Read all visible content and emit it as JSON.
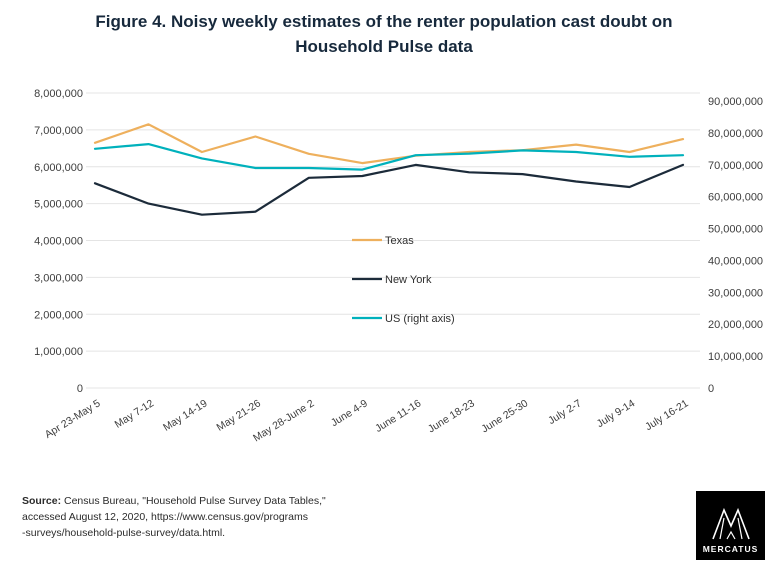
{
  "page": {
    "title": "Figure 4. Noisy weekly estimates of the renter population cast doubt on Household Pulse data"
  },
  "chart_data": {
    "type": "line",
    "title": "Figure 4. Noisy weekly estimates of the renter population cast doubt on Household Pulse data",
    "grid": true,
    "legend_position": "center",
    "categories": [
      "Apr 23-May 5",
      "May 7-12",
      "May 14-19",
      "May 21-26",
      "May 28-June 2",
      "June 4-9",
      "June 11-16",
      "June 18-23",
      "June 25-30",
      "July 2-7",
      "July 9-14",
      "July 16-21"
    ],
    "left_axis": {
      "min": 0,
      "max": 8000000,
      "step": 1000000,
      "ticks": [
        "0",
        "1,000,000",
        "2,000,000",
        "3,000,000",
        "4,000,000",
        "5,000,000",
        "6,000,000",
        "7,000,000",
        "8,000,000"
      ]
    },
    "right_axis": {
      "min": 0,
      "max": 90000000,
      "step": 10000000,
      "ticks": [
        "0",
        "10,000,000",
        "20,000,000",
        "30,000,000",
        "40,000,000",
        "50,000,000",
        "60,000,000",
        "70,000,000",
        "80,000,000",
        "90,000,000"
      ]
    },
    "series": [
      {
        "name": "Texas",
        "axis": "left",
        "color": "#eeb05d",
        "values": [
          6650000,
          7150000,
          6400000,
          6820000,
          6350000,
          6100000,
          6300000,
          6400000,
          6450000,
          6600000,
          6400000,
          6750000
        ]
      },
      {
        "name": "New York",
        "axis": "left",
        "color": "#1c2b3a",
        "values": [
          5550000,
          5000000,
          4700000,
          4780000,
          5700000,
          5750000,
          6050000,
          5850000,
          5800000,
          5600000,
          5450000,
          6050000
        ]
      },
      {
        "name": "US (right axis)",
        "axis": "right",
        "color": "#00b1bc",
        "values": [
          75000000,
          76500000,
          72000000,
          69000000,
          69000000,
          68500000,
          73000000,
          73500000,
          74500000,
          74000000,
          72500000,
          73000000
        ]
      }
    ]
  },
  "footer": {
    "source_label": "Source:",
    "line1": " Census Bureau, \"Household Pulse Survey Data Tables,\"",
    "line2": "accessed August 12, 2020, https://www.census.gov/programs",
    "line3": "-surveys/household-pulse-survey/data.html."
  },
  "logo": {
    "text": "MERCATUS"
  }
}
